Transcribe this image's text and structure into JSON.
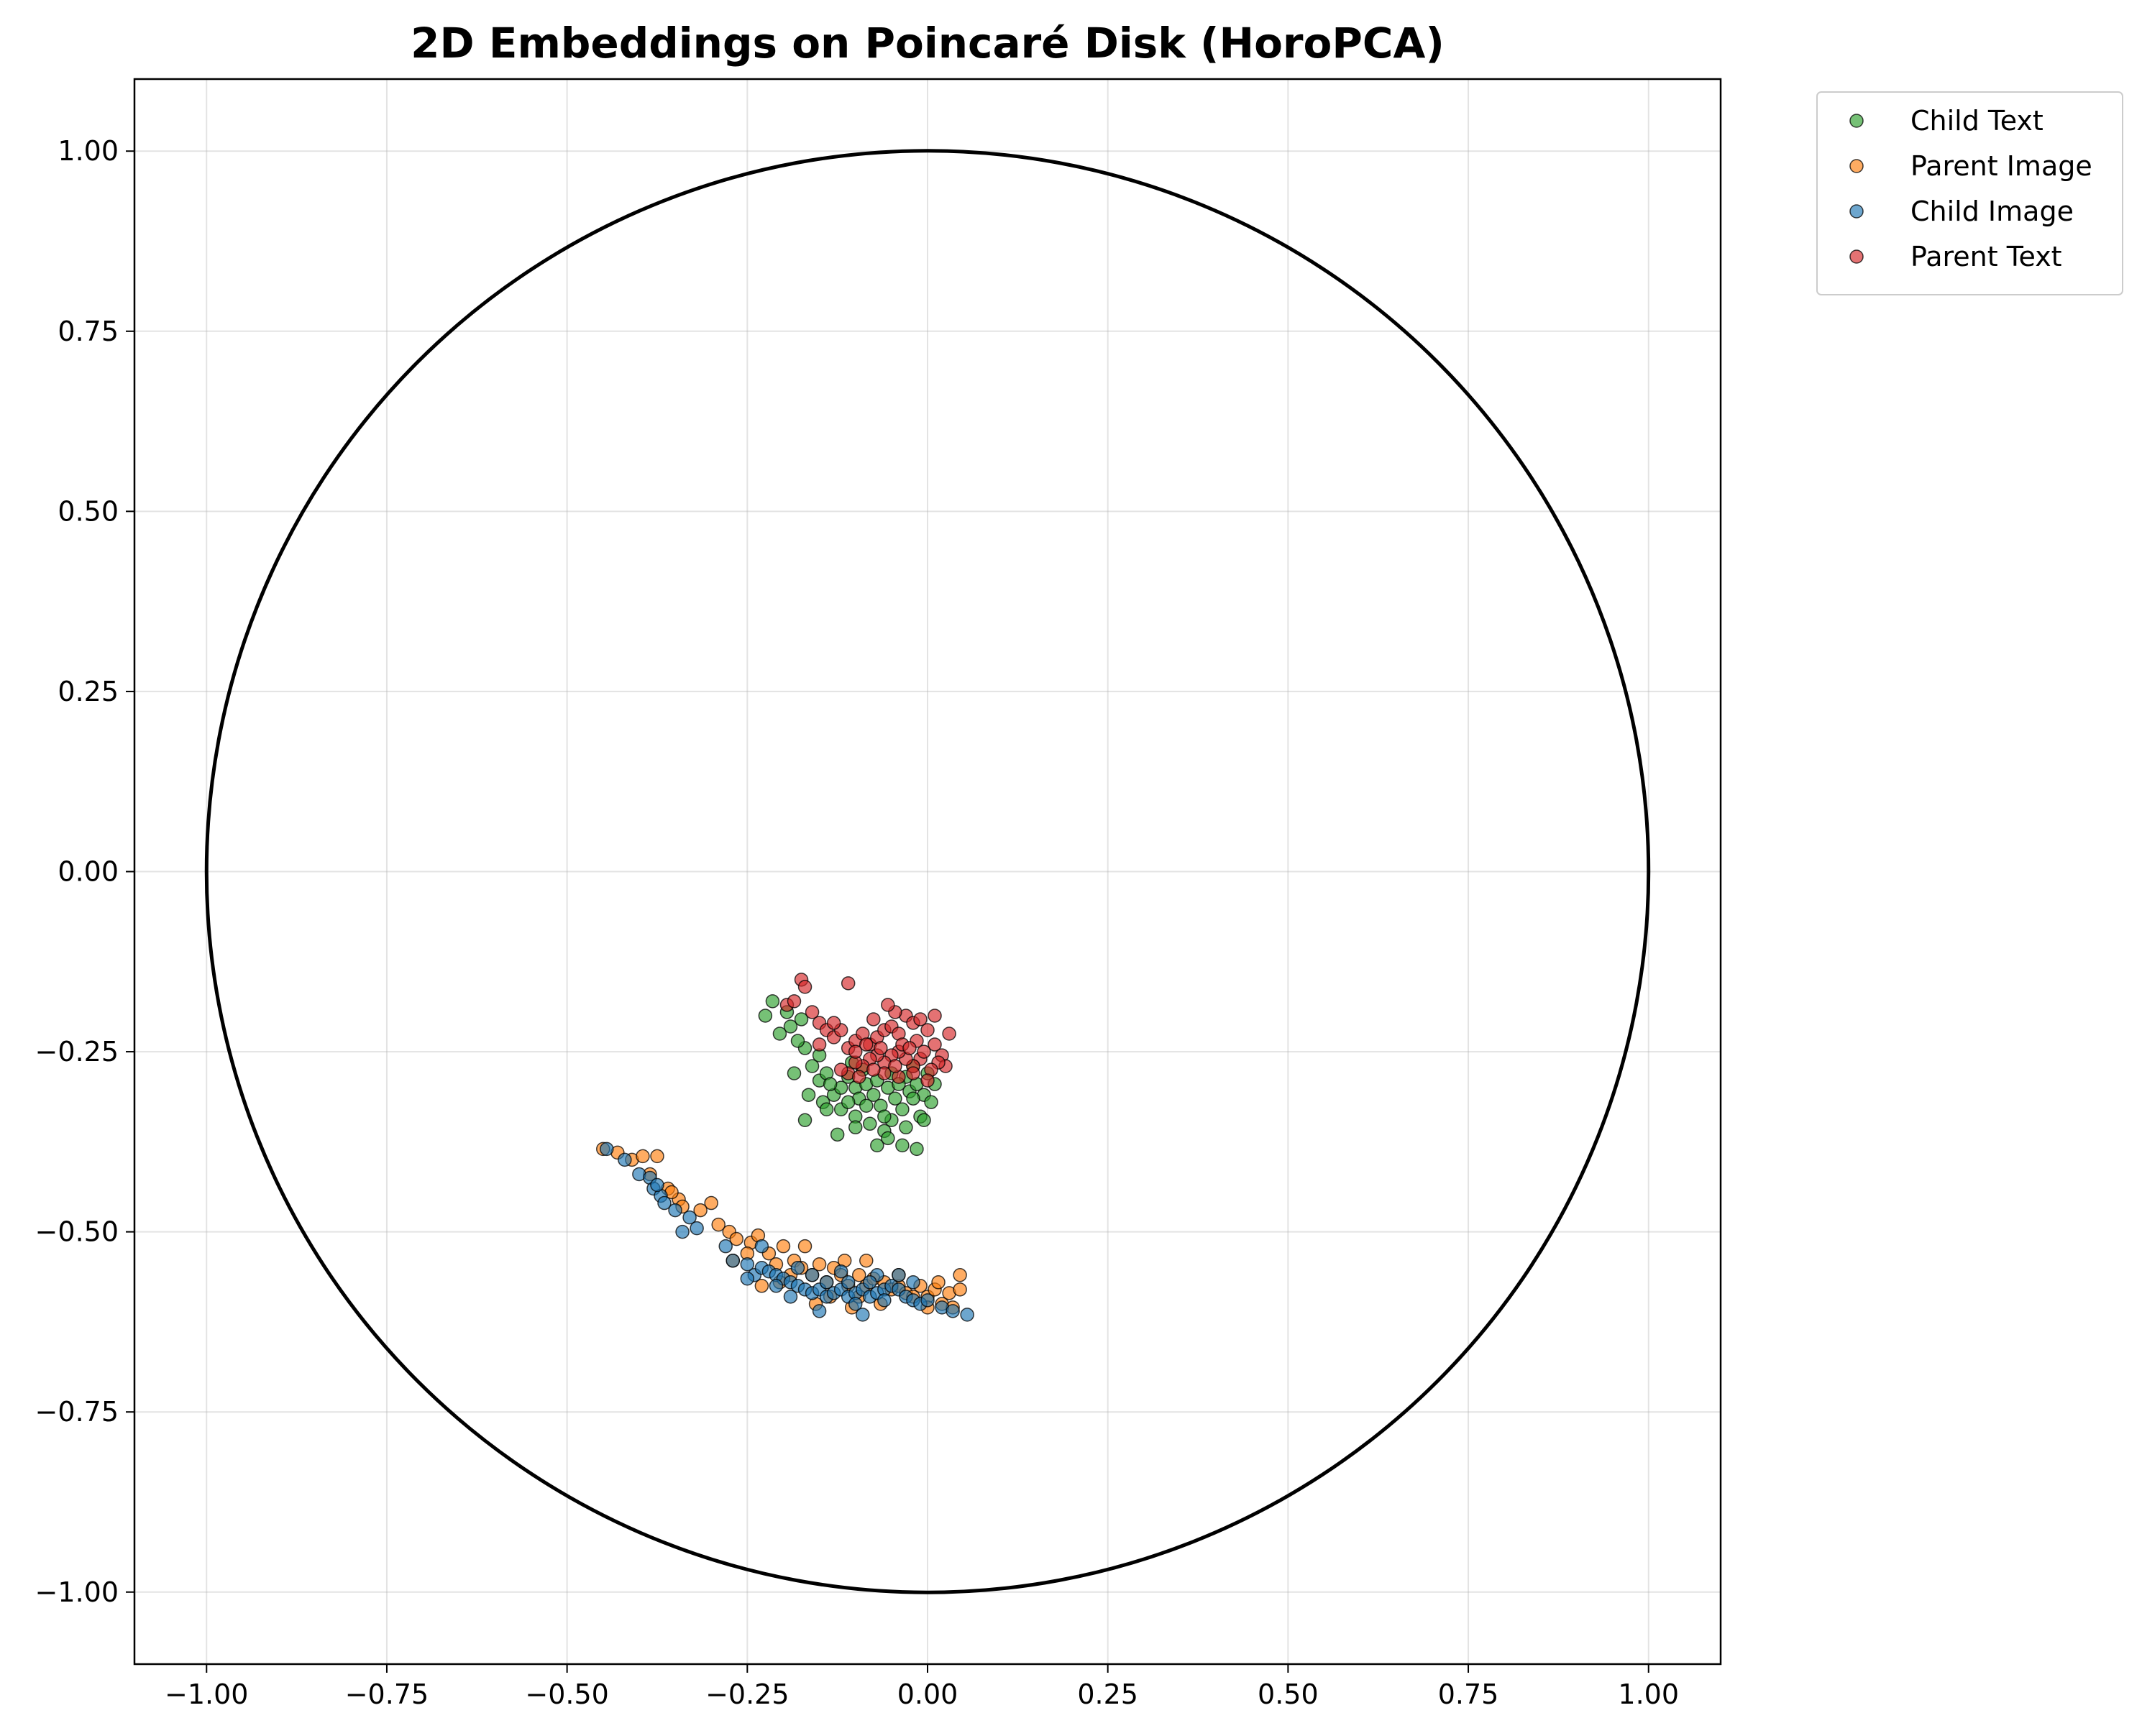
{
  "chart_data": {
    "type": "scatter",
    "title": "2D Embeddings on Poincaré Disk (HoroPCA)",
    "xlabel": "",
    "ylabel": "",
    "xlim": [
      -1.1,
      1.1
    ],
    "ylim": [
      -1.1,
      1.1
    ],
    "xticks": [
      -1.0,
      -0.75,
      -0.5,
      -0.25,
      0.0,
      0.25,
      0.5,
      0.75,
      1.0
    ],
    "yticks": [
      1.0,
      0.75,
      0.5,
      0.25,
      0.0,
      -0.25,
      -0.5,
      -0.75,
      -1.0
    ],
    "xtick_labels": [
      "−1.00",
      "−0.75",
      "−0.50",
      "−0.25",
      "0.00",
      "0.25",
      "0.50",
      "0.75",
      "1.00"
    ],
    "ytick_labels": [
      "1.00",
      "0.75",
      "0.50",
      "0.25",
      "0.00",
      "−0.25",
      "−0.50",
      "−0.75",
      "−1.00"
    ],
    "grid": true,
    "legend_position": "outside-top-right",
    "unit_circle": {
      "center": [
        0,
        0
      ],
      "radius": 1
    },
    "series": [
      {
        "name": "Child Text",
        "color": "#2ca02c",
        "points": [
          [
            -0.215,
            -0.18
          ],
          [
            -0.225,
            -0.2
          ],
          [
            -0.205,
            -0.225
          ],
          [
            -0.19,
            -0.215
          ],
          [
            -0.175,
            -0.205
          ],
          [
            -0.17,
            -0.245
          ],
          [
            -0.16,
            -0.27
          ],
          [
            -0.185,
            -0.28
          ],
          [
            -0.15,
            -0.29
          ],
          [
            -0.165,
            -0.31
          ],
          [
            -0.145,
            -0.32
          ],
          [
            -0.13,
            -0.31
          ],
          [
            -0.12,
            -0.3
          ],
          [
            -0.11,
            -0.285
          ],
          [
            -0.1,
            -0.3
          ],
          [
            -0.095,
            -0.315
          ],
          [
            -0.085,
            -0.295
          ],
          [
            -0.075,
            -0.31
          ],
          [
            -0.065,
            -0.325
          ],
          [
            -0.055,
            -0.3
          ],
          [
            -0.045,
            -0.315
          ],
          [
            -0.035,
            -0.33
          ],
          [
            -0.025,
            -0.305
          ],
          [
            -0.015,
            -0.295
          ],
          [
            -0.005,
            -0.31
          ],
          [
            0.005,
            -0.32
          ],
          [
            -0.01,
            -0.34
          ],
          [
            -0.03,
            -0.355
          ],
          [
            -0.05,
            -0.345
          ],
          [
            -0.06,
            -0.36
          ],
          [
            -0.08,
            -0.35
          ],
          [
            -0.1,
            -0.34
          ],
          [
            -0.12,
            -0.33
          ],
          [
            -0.14,
            -0.33
          ],
          [
            -0.17,
            -0.345
          ],
          [
            -0.125,
            -0.365
          ],
          [
            -0.07,
            -0.38
          ],
          [
            -0.035,
            -0.38
          ],
          [
            -0.015,
            -0.385
          ],
          [
            -0.055,
            -0.37
          ],
          [
            -0.09,
            -0.275
          ],
          [
            -0.105,
            -0.265
          ],
          [
            -0.14,
            -0.28
          ],
          [
            -0.05,
            -0.28
          ],
          [
            -0.03,
            -0.285
          ],
          [
            -0.02,
            -0.27
          ],
          [
            0.0,
            -0.28
          ],
          [
            0.01,
            -0.295
          ],
          [
            -0.005,
            -0.345
          ],
          [
            -0.15,
            -0.255
          ],
          [
            -0.135,
            -0.295
          ],
          [
            -0.07,
            -0.29
          ],
          [
            -0.04,
            -0.295
          ],
          [
            -0.085,
            -0.325
          ],
          [
            -0.11,
            -0.32
          ],
          [
            -0.18,
            -0.235
          ],
          [
            -0.195,
            -0.195
          ],
          [
            -0.06,
            -0.34
          ],
          [
            -0.02,
            -0.315
          ],
          [
            -0.1,
            -0.355
          ]
        ]
      },
      {
        "name": "Parent Image",
        "color": "#ff7f0e",
        "points": [
          [
            -0.45,
            -0.385
          ],
          [
            -0.43,
            -0.39
          ],
          [
            -0.41,
            -0.4
          ],
          [
            -0.395,
            -0.395
          ],
          [
            -0.375,
            -0.395
          ],
          [
            -0.385,
            -0.42
          ],
          [
            -0.36,
            -0.44
          ],
          [
            -0.345,
            -0.455
          ],
          [
            -0.34,
            -0.465
          ],
          [
            -0.3,
            -0.46
          ],
          [
            -0.29,
            -0.49
          ],
          [
            -0.275,
            -0.5
          ],
          [
            -0.265,
            -0.51
          ],
          [
            -0.245,
            -0.515
          ],
          [
            -0.235,
            -0.505
          ],
          [
            -0.22,
            -0.53
          ],
          [
            -0.21,
            -0.545
          ],
          [
            -0.2,
            -0.52
          ],
          [
            -0.185,
            -0.54
          ],
          [
            -0.175,
            -0.55
          ],
          [
            -0.16,
            -0.56
          ],
          [
            -0.15,
            -0.545
          ],
          [
            -0.14,
            -0.57
          ],
          [
            -0.13,
            -0.55
          ],
          [
            -0.12,
            -0.56
          ],
          [
            -0.11,
            -0.575
          ],
          [
            -0.095,
            -0.56
          ],
          [
            -0.085,
            -0.575
          ],
          [
            -0.075,
            -0.565
          ],
          [
            -0.06,
            -0.57
          ],
          [
            -0.05,
            -0.58
          ],
          [
            -0.04,
            -0.575
          ],
          [
            -0.03,
            -0.585
          ],
          [
            -0.02,
            -0.59
          ],
          [
            -0.01,
            -0.575
          ],
          [
            0.0,
            -0.59
          ],
          [
            0.01,
            -0.58
          ],
          [
            0.02,
            -0.6
          ],
          [
            0.03,
            -0.585
          ],
          [
            0.045,
            -0.58
          ],
          [
            0.045,
            -0.56
          ],
          [
            0.015,
            -0.57
          ],
          [
            -0.17,
            -0.52
          ],
          [
            -0.27,
            -0.54
          ],
          [
            -0.23,
            -0.575
          ],
          [
            -0.205,
            -0.57
          ],
          [
            -0.155,
            -0.6
          ],
          [
            -0.115,
            -0.54
          ],
          [
            -0.085,
            -0.54
          ],
          [
            -0.105,
            -0.605
          ],
          [
            -0.065,
            -0.6
          ],
          [
            -0.04,
            -0.56
          ],
          [
            -0.19,
            -0.56
          ],
          [
            -0.25,
            -0.53
          ],
          [
            -0.315,
            -0.47
          ],
          [
            -0.355,
            -0.445
          ],
          [
            0.035,
            -0.605
          ],
          [
            -0.135,
            -0.59
          ],
          [
            -0.095,
            -0.59
          ],
          [
            0.0,
            -0.605
          ]
        ]
      },
      {
        "name": "Child Image",
        "color": "#1f77b4",
        "points": [
          [
            -0.445,
            -0.385
          ],
          [
            -0.42,
            -0.4
          ],
          [
            -0.4,
            -0.42
          ],
          [
            -0.385,
            -0.425
          ],
          [
            -0.38,
            -0.44
          ],
          [
            -0.37,
            -0.45
          ],
          [
            -0.365,
            -0.46
          ],
          [
            -0.35,
            -0.47
          ],
          [
            -0.33,
            -0.48
          ],
          [
            -0.32,
            -0.495
          ],
          [
            -0.34,
            -0.5
          ],
          [
            -0.28,
            -0.52
          ],
          [
            -0.27,
            -0.54
          ],
          [
            -0.25,
            -0.545
          ],
          [
            -0.24,
            -0.56
          ],
          [
            -0.23,
            -0.55
          ],
          [
            -0.22,
            -0.555
          ],
          [
            -0.21,
            -0.56
          ],
          [
            -0.2,
            -0.565
          ],
          [
            -0.19,
            -0.57
          ],
          [
            -0.18,
            -0.575
          ],
          [
            -0.17,
            -0.58
          ],
          [
            -0.16,
            -0.585
          ],
          [
            -0.15,
            -0.58
          ],
          [
            -0.14,
            -0.59
          ],
          [
            -0.13,
            -0.585
          ],
          [
            -0.12,
            -0.58
          ],
          [
            -0.11,
            -0.59
          ],
          [
            -0.1,
            -0.585
          ],
          [
            -0.09,
            -0.58
          ],
          [
            -0.08,
            -0.59
          ],
          [
            -0.07,
            -0.585
          ],
          [
            -0.06,
            -0.58
          ],
          [
            -0.05,
            -0.575
          ],
          [
            -0.04,
            -0.58
          ],
          [
            -0.03,
            -0.59
          ],
          [
            -0.02,
            -0.595
          ],
          [
            -0.01,
            -0.6
          ],
          [
            0.0,
            -0.595
          ],
          [
            0.02,
            -0.605
          ],
          [
            0.035,
            -0.61
          ],
          [
            0.055,
            -0.615
          ],
          [
            -0.09,
            -0.615
          ],
          [
            -0.15,
            -0.61
          ],
          [
            -0.21,
            -0.575
          ],
          [
            -0.25,
            -0.565
          ],
          [
            -0.12,
            -0.555
          ],
          [
            -0.07,
            -0.56
          ],
          [
            -0.1,
            -0.6
          ],
          [
            -0.06,
            -0.595
          ],
          [
            -0.18,
            -0.55
          ],
          [
            -0.16,
            -0.56
          ],
          [
            -0.23,
            -0.52
          ],
          [
            -0.04,
            -0.56
          ],
          [
            -0.02,
            -0.57
          ],
          [
            -0.14,
            -0.57
          ],
          [
            -0.08,
            -0.57
          ],
          [
            -0.19,
            -0.59
          ],
          [
            -0.11,
            -0.57
          ],
          [
            -0.375,
            -0.435
          ]
        ]
      },
      {
        "name": "Parent Text",
        "color": "#d62728",
        "points": [
          [
            -0.175,
            -0.15
          ],
          [
            -0.17,
            -0.16
          ],
          [
            -0.11,
            -0.155
          ],
          [
            -0.195,
            -0.185
          ],
          [
            -0.185,
            -0.18
          ],
          [
            -0.16,
            -0.195
          ],
          [
            -0.15,
            -0.21
          ],
          [
            -0.14,
            -0.22
          ],
          [
            -0.13,
            -0.23
          ],
          [
            -0.12,
            -0.22
          ],
          [
            -0.11,
            -0.245
          ],
          [
            -0.1,
            -0.235
          ],
          [
            -0.09,
            -0.225
          ],
          [
            -0.08,
            -0.24
          ],
          [
            -0.07,
            -0.23
          ],
          [
            -0.06,
            -0.22
          ],
          [
            -0.05,
            -0.215
          ],
          [
            -0.04,
            -0.225
          ],
          [
            -0.03,
            -0.2
          ],
          [
            -0.02,
            -0.21
          ],
          [
            -0.01,
            -0.205
          ],
          [
            0.0,
            -0.22
          ],
          [
            0.01,
            -0.24
          ],
          [
            0.02,
            -0.255
          ],
          [
            0.025,
            -0.27
          ],
          [
            0.03,
            -0.225
          ],
          [
            0.015,
            -0.265
          ],
          [
            0.005,
            -0.275
          ],
          [
            -0.01,
            -0.26
          ],
          [
            -0.02,
            -0.27
          ],
          [
            -0.03,
            -0.26
          ],
          [
            -0.04,
            -0.25
          ],
          [
            -0.05,
            -0.255
          ],
          [
            -0.06,
            -0.265
          ],
          [
            -0.07,
            -0.255
          ],
          [
            -0.08,
            -0.26
          ],
          [
            -0.09,
            -0.27
          ],
          [
            -0.1,
            -0.265
          ],
          [
            -0.11,
            -0.28
          ],
          [
            -0.12,
            -0.275
          ],
          [
            -0.06,
            -0.28
          ],
          [
            -0.04,
            -0.285
          ],
          [
            -0.02,
            -0.28
          ],
          [
            0.0,
            -0.29
          ],
          [
            -0.045,
            -0.195
          ],
          [
            -0.055,
            -0.185
          ],
          [
            -0.075,
            -0.205
          ],
          [
            -0.085,
            -0.24
          ],
          [
            -0.1,
            -0.25
          ],
          [
            -0.13,
            -0.21
          ],
          [
            -0.15,
            -0.24
          ],
          [
            -0.065,
            -0.245
          ],
          [
            -0.035,
            -0.24
          ],
          [
            -0.015,
            -0.235
          ],
          [
            -0.005,
            -0.25
          ],
          [
            -0.095,
            -0.285
          ],
          [
            -0.045,
            -0.27
          ],
          [
            -0.025,
            -0.245
          ],
          [
            0.01,
            -0.2
          ],
          [
            -0.075,
            -0.275
          ]
        ]
      }
    ]
  }
}
